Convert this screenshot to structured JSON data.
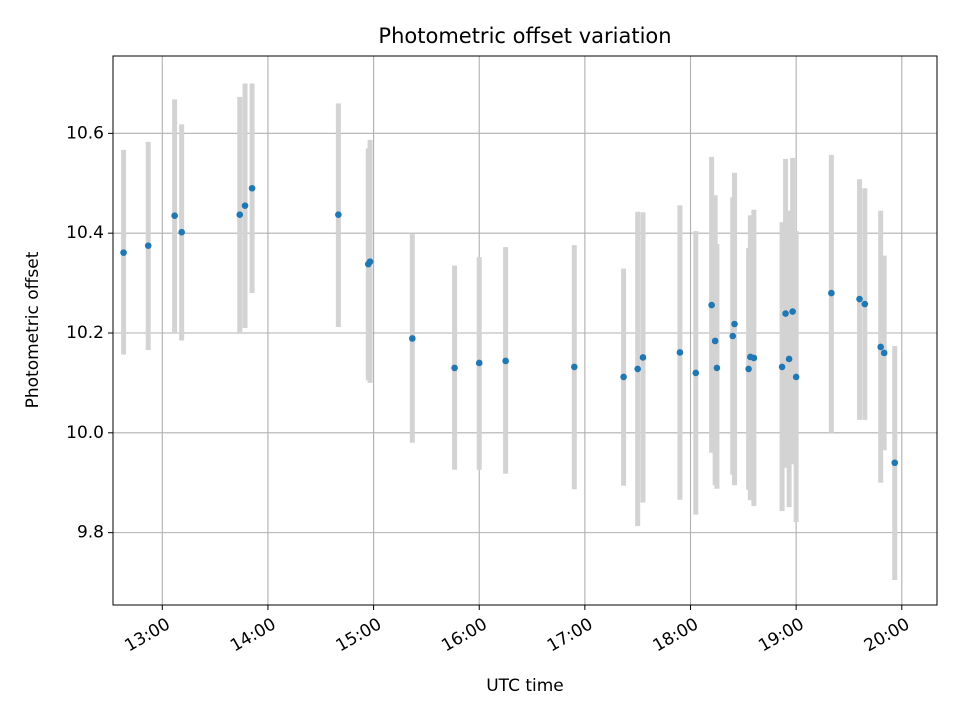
{
  "chart_data": {
    "type": "scatter",
    "title": "Photometric offset variation",
    "xlabel": "UTC time",
    "ylabel": "Photometric offset",
    "xlim": [
      "12:32",
      "20:20"
    ],
    "ylim": [
      9.655,
      10.755
    ],
    "x_ticks": [
      "13:00",
      "14:00",
      "15:00",
      "16:00",
      "17:00",
      "18:00",
      "19:00",
      "20:00"
    ],
    "y_ticks": [
      9.8,
      10.0,
      10.2,
      10.4,
      10.6
    ],
    "y_tick_labels": [
      "9.8",
      "10.0",
      "10.2",
      "10.4",
      "10.6"
    ],
    "grid": true,
    "colors": {
      "point": "#1f77b4",
      "errorbar": "#d3d3d3",
      "grid": "#b0b0b0"
    },
    "points": [
      {
        "x": "12:38",
        "y": 10.361,
        "yerr_low": 10.157,
        "yerr_high": 10.567
      },
      {
        "x": "12:52",
        "y": 10.375,
        "yerr_low": 10.166,
        "yerr_high": 10.583
      },
      {
        "x": "13:07",
        "y": 10.435,
        "yerr_low": 10.2,
        "yerr_high": 10.668
      },
      {
        "x": "13:11",
        "y": 10.402,
        "yerr_low": 10.185,
        "yerr_high": 10.618
      },
      {
        "x": "13:44",
        "y": 10.437,
        "yerr_low": 10.2,
        "yerr_high": 10.673
      },
      {
        "x": "13:47",
        "y": 10.455,
        "yerr_low": 10.21,
        "yerr_high": 10.7
      },
      {
        "x": "13:51",
        "y": 10.49,
        "yerr_low": 10.28,
        "yerr_high": 10.7
      },
      {
        "x": "14:40",
        "y": 10.437,
        "yerr_low": 10.212,
        "yerr_high": 10.66
      },
      {
        "x": "14:57",
        "y": 10.338,
        "yerr_low": 10.105,
        "yerr_high": 10.57
      },
      {
        "x": "14:58",
        "y": 10.343,
        "yerr_low": 10.1,
        "yerr_high": 10.587
      },
      {
        "x": "15:22",
        "y": 10.189,
        "yerr_low": 9.98,
        "yerr_high": 10.398
      },
      {
        "x": "15:46",
        "y": 10.13,
        "yerr_low": 9.926,
        "yerr_high": 10.335
      },
      {
        "x": "16:00",
        "y": 10.14,
        "yerr_low": 9.926,
        "yerr_high": 10.352
      },
      {
        "x": "16:15",
        "y": 10.144,
        "yerr_low": 9.918,
        "yerr_high": 10.372
      },
      {
        "x": "16:54",
        "y": 10.132,
        "yerr_low": 9.887,
        "yerr_high": 10.376
      },
      {
        "x": "17:22",
        "y": 10.112,
        "yerr_low": 9.894,
        "yerr_high": 10.329
      },
      {
        "x": "17:30",
        "y": 10.128,
        "yerr_low": 9.813,
        "yerr_high": 10.443
      },
      {
        "x": "17:33",
        "y": 10.151,
        "yerr_low": 9.86,
        "yerr_high": 10.442
      },
      {
        "x": "17:54",
        "y": 10.161,
        "yerr_low": 9.866,
        "yerr_high": 10.456
      },
      {
        "x": "18:03",
        "y": 10.12,
        "yerr_low": 9.836,
        "yerr_high": 10.404
      },
      {
        "x": "18:12",
        "y": 10.256,
        "yerr_low": 9.96,
        "yerr_high": 10.553
      },
      {
        "x": "18:14",
        "y": 10.184,
        "yerr_low": 9.895,
        "yerr_high": 10.476
      },
      {
        "x": "18:15",
        "y": 10.13,
        "yerr_low": 9.888,
        "yerr_high": 10.378
      },
      {
        "x": "18:24",
        "y": 10.194,
        "yerr_low": 9.916,
        "yerr_high": 10.472
      },
      {
        "x": "18:25",
        "y": 10.218,
        "yerr_low": 9.895,
        "yerr_high": 10.521
      },
      {
        "x": "18:33",
        "y": 10.128,
        "yerr_low": 9.886,
        "yerr_high": 10.37
      },
      {
        "x": "18:34",
        "y": 10.152,
        "yerr_low": 9.865,
        "yerr_high": 10.436
      },
      {
        "x": "18:36",
        "y": 10.15,
        "yerr_low": 9.853,
        "yerr_high": 10.447
      },
      {
        "x": "18:52",
        "y": 10.132,
        "yerr_low": 9.843,
        "yerr_high": 10.422
      },
      {
        "x": "18:54",
        "y": 10.239,
        "yerr_low": 9.93,
        "yerr_high": 10.549
      },
      {
        "x": "18:56",
        "y": 10.148,
        "yerr_low": 9.851,
        "yerr_high": 10.445
      },
      {
        "x": "18:58",
        "y": 10.243,
        "yerr_low": 9.937,
        "yerr_high": 10.551
      },
      {
        "x": "19:00",
        "y": 10.112,
        "yerr_low": 9.821,
        "yerr_high": 10.404
      },
      {
        "x": "19:20",
        "y": 10.28,
        "yerr_low": 10.0,
        "yerr_high": 10.557
      },
      {
        "x": "19:36",
        "y": 10.268,
        "yerr_low": 10.026,
        "yerr_high": 10.508
      },
      {
        "x": "19:39",
        "y": 10.258,
        "yerr_low": 10.026,
        "yerr_high": 10.49
      },
      {
        "x": "19:48",
        "y": 10.172,
        "yerr_low": 9.9,
        "yerr_high": 10.445
      },
      {
        "x": "19:50",
        "y": 10.16,
        "yerr_low": 9.965,
        "yerr_high": 10.355
      },
      {
        "x": "19:56",
        "y": 9.94,
        "yerr_low": 9.705,
        "yerr_high": 10.174
      }
    ]
  }
}
